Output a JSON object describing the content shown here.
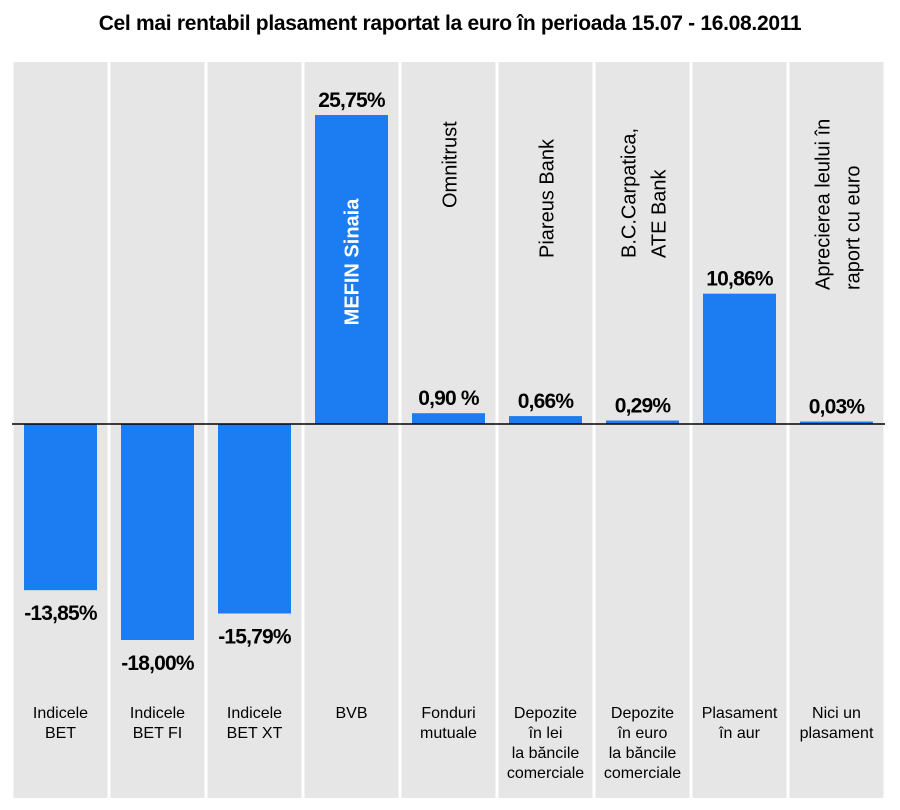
{
  "chart_data": {
    "type": "bar",
    "title": "Cel mai rentabil plasament raportat la euro în perioada 15.07 - 16.08.2011",
    "categories": [
      [
        "Indicele",
        "BET"
      ],
      [
        "Indicele",
        "BET FI"
      ],
      [
        "Indicele",
        "BET XT"
      ],
      [
        "BVB"
      ],
      [
        "Fonduri",
        "mutuale"
      ],
      [
        "Depozite",
        "în lei",
        "la băncile",
        "comerciale"
      ],
      [
        "Depozite",
        "în euro",
        "la băncile",
        "comerciale"
      ],
      [
        "Plasament",
        "în aur"
      ],
      [
        "Nici un",
        "plasament"
      ]
    ],
    "values": [
      -13.85,
      -18.0,
      -15.79,
      25.75,
      0.9,
      0.66,
      0.29,
      10.86,
      0.03
    ],
    "value_labels": [
      "-13,85%",
      "-18,00%",
      "-15,79%",
      "25,75%",
      "0,90 %",
      "0,66%",
      "0,29%",
      "10,86%",
      "0,03%"
    ],
    "annotations": [
      [],
      [],
      [],
      [
        "MEFIN Sinaia"
      ],
      [
        "Omnitrust"
      ],
      [
        "Piareus Bank"
      ],
      [
        "B.C.Carpatica,",
        "ATE Bank"
      ],
      [],
      [
        "Aprecierea leului în",
        "raport cu euro"
      ]
    ],
    "ylim": [
      -30,
      30
    ],
    "colors": {
      "bar": "#1c7df2",
      "panel": "#e6e6e6",
      "baseline": "#000000",
      "inside_label": "#ffffff"
    }
  }
}
